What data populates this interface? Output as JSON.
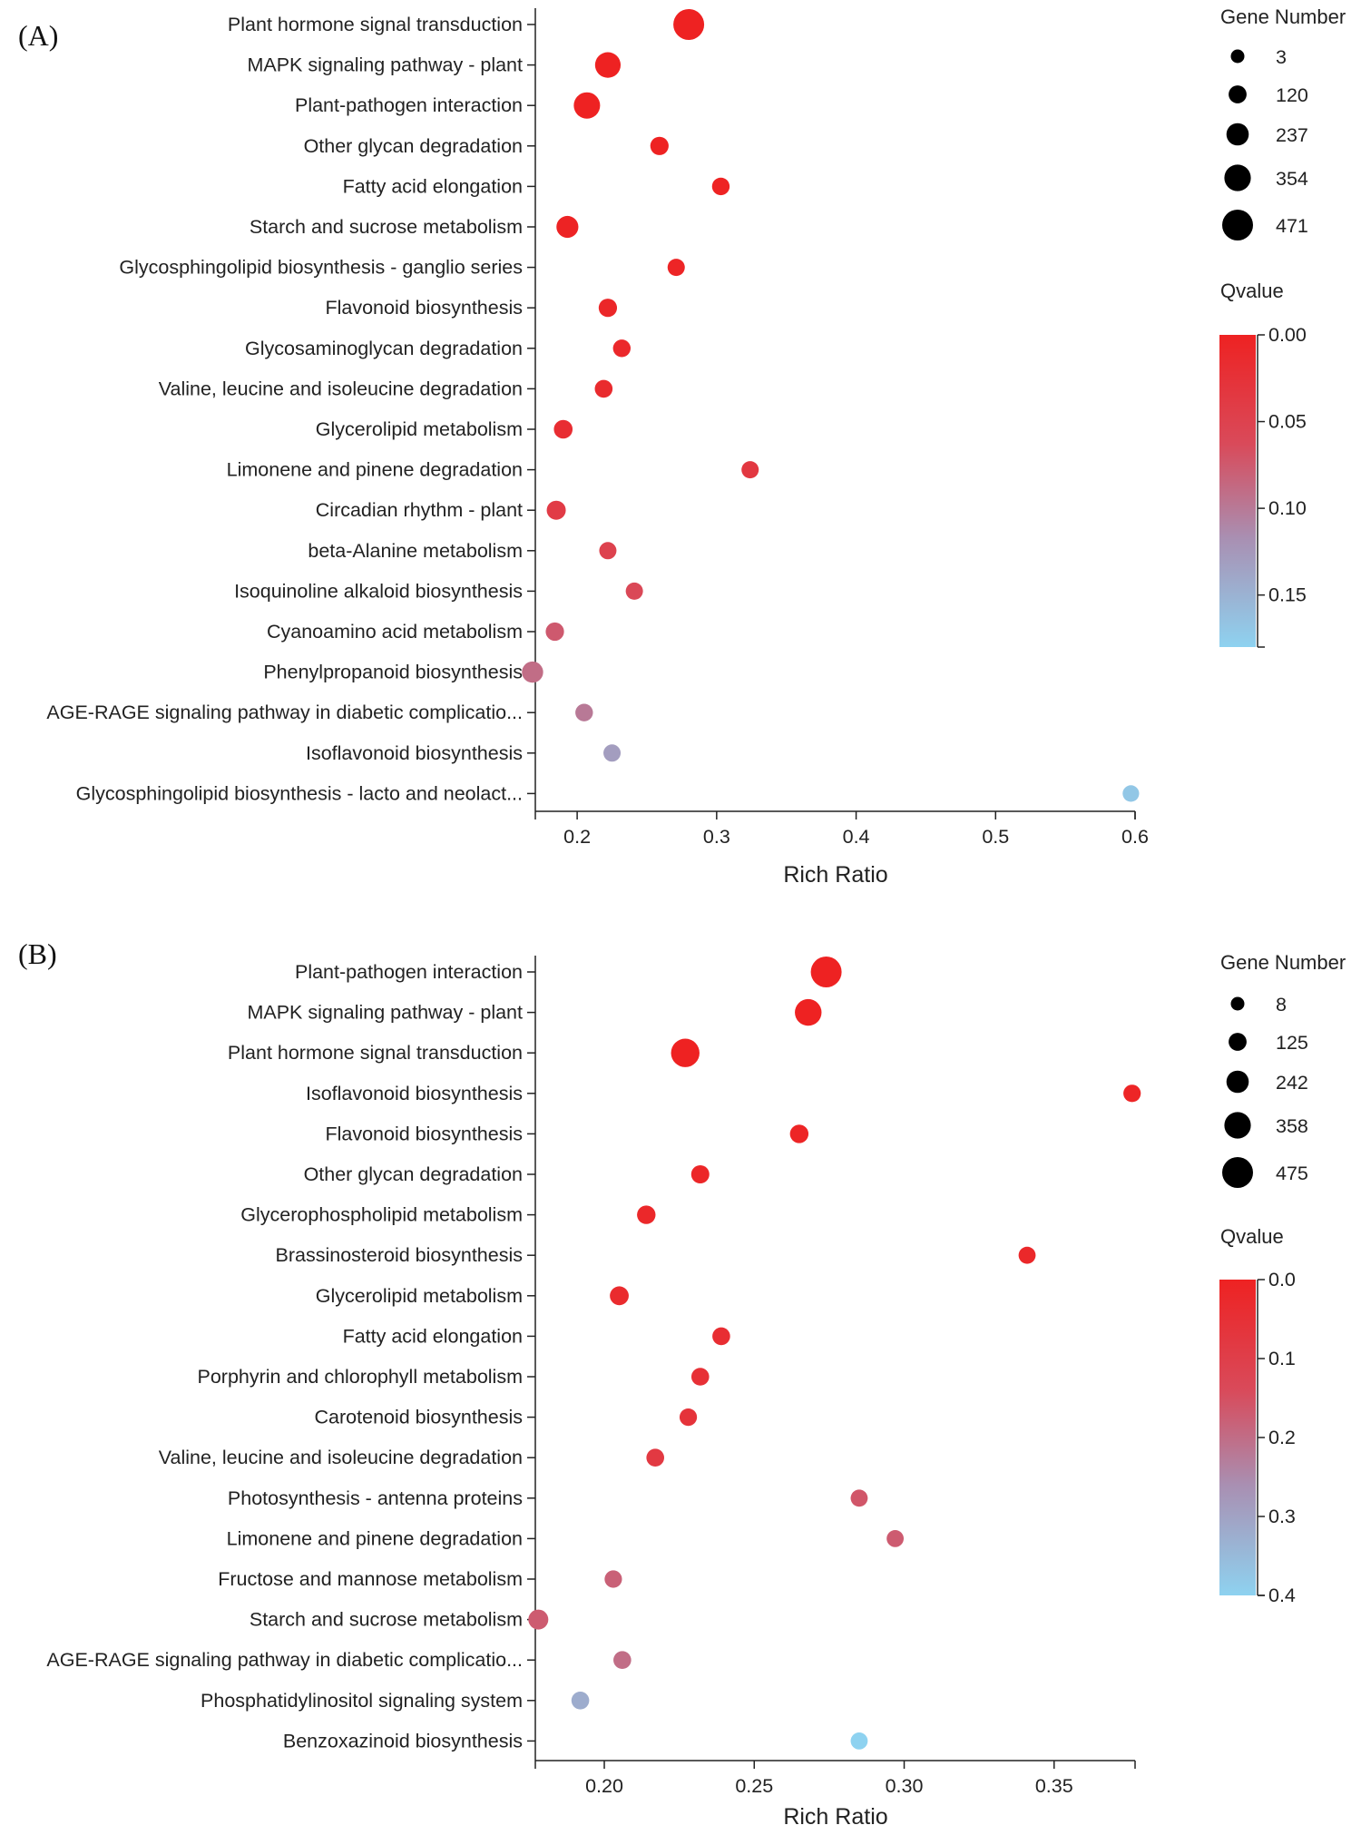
{
  "chart_data": [
    {
      "panel_label": "(A)",
      "type": "scatter",
      "xlabel": "Rich Ratio",
      "x_ticks": [
        "0.2",
        "0.3",
        "0.4",
        "0.5",
        "0.6"
      ],
      "x_tick_values": [
        0.2,
        0.3,
        0.4,
        0.5,
        0.6
      ],
      "xlim": [
        0.17,
        0.6
      ],
      "size_legend_title": "Gene Number",
      "size_legend_labels": [
        "3",
        "120",
        "237",
        "354",
        "471"
      ],
      "size_legend_values": [
        3,
        120,
        237,
        354,
        471
      ],
      "color_legend_title": "Qvalue",
      "color_ticks": [
        "0.00",
        "0.05",
        "0.10",
        "0.15"
      ],
      "color_tick_values": [
        0.0,
        0.05,
        0.1,
        0.15
      ],
      "color_range": [
        0.0,
        0.18
      ],
      "points": [
        {
          "term": "Plant hormone signal transduction",
          "rich_ratio": 0.28,
          "gene_number": 471,
          "qvalue": 0.0
        },
        {
          "term": "MAPK signaling pathway - plant",
          "rich_ratio": 0.222,
          "gene_number": 330,
          "qvalue": 0.0
        },
        {
          "term": "Plant-pathogen interaction",
          "rich_ratio": 0.207,
          "gene_number": 350,
          "qvalue": 0.0
        },
        {
          "term": "Other glycan degradation",
          "rich_ratio": 0.259,
          "gene_number": 130,
          "qvalue": 0.0
        },
        {
          "term": "Fatty acid elongation",
          "rich_ratio": 0.303,
          "gene_number": 110,
          "qvalue": 0.001
        },
        {
          "term": "Starch and sucrose metabolism",
          "rich_ratio": 0.193,
          "gene_number": 230,
          "qvalue": 0.002
        },
        {
          "term": "Glycosphingolipid biosynthesis - ganglio series",
          "rich_ratio": 0.271,
          "gene_number": 100,
          "qvalue": 0.004
        },
        {
          "term": "Flavonoid biosynthesis",
          "rich_ratio": 0.222,
          "gene_number": 130,
          "qvalue": 0.008
        },
        {
          "term": "Glycosaminoglycan degradation",
          "rich_ratio": 0.232,
          "gene_number": 110,
          "qvalue": 0.01
        },
        {
          "term": "Valine, leucine and isoleucine degradation",
          "rich_ratio": 0.219,
          "gene_number": 115,
          "qvalue": 0.014
        },
        {
          "term": "Glycerolipid metabolism",
          "rich_ratio": 0.19,
          "gene_number": 140,
          "qvalue": 0.018
        },
        {
          "term": "Limonene and pinene degradation",
          "rich_ratio": 0.324,
          "gene_number": 100,
          "qvalue": 0.035
        },
        {
          "term": "Circadian rhythm - plant",
          "rich_ratio": 0.185,
          "gene_number": 150,
          "qvalue": 0.04
        },
        {
          "term": "beta-Alanine metabolism",
          "rich_ratio": 0.222,
          "gene_number": 100,
          "qvalue": 0.05
        },
        {
          "term": "Isoquinoline alkaloid biosynthesis",
          "rich_ratio": 0.241,
          "gene_number": 100,
          "qvalue": 0.06
        },
        {
          "term": "Cyanoamino acid metabolism",
          "rich_ratio": 0.184,
          "gene_number": 130,
          "qvalue": 0.075
        },
        {
          "term": "Phenylpropanoid biosynthesis",
          "rich_ratio": 0.168,
          "gene_number": 210,
          "qvalue": 0.09
        },
        {
          "term": "AGE-RAGE signaling pathway in diabetic complicatio...",
          "rich_ratio": 0.205,
          "gene_number": 110,
          "qvalue": 0.1
        },
        {
          "term": "Isoflavonoid biosynthesis",
          "rich_ratio": 0.225,
          "gene_number": 100,
          "qvalue": 0.13
        },
        {
          "term": "Glycosphingolipid biosynthesis - lacto and neolact...",
          "rich_ratio": 0.597,
          "gene_number": 80,
          "qvalue": 0.17
        }
      ]
    },
    {
      "panel_label": "(B)",
      "type": "scatter",
      "xlabel": "Rich Ratio",
      "x_ticks": [
        "0.20",
        "0.25",
        "0.30",
        "0.35"
      ],
      "x_tick_values": [
        0.2,
        0.25,
        0.3,
        0.35
      ],
      "xlim": [
        0.177,
        0.377
      ],
      "size_legend_title": "Gene Number",
      "size_legend_labels": [
        "8",
        "125",
        "242",
        "358",
        "475"
      ],
      "size_legend_values": [
        8,
        125,
        242,
        358,
        475
      ],
      "color_legend_title": "Qvalue",
      "color_ticks": [
        "0.0",
        "0.1",
        "0.2",
        "0.3",
        "0.4"
      ],
      "color_tick_values": [
        0.0,
        0.1,
        0.2,
        0.3,
        0.4
      ],
      "color_range": [
        0.0,
        0.4
      ],
      "points": [
        {
          "term": "Plant-pathogen interaction",
          "rich_ratio": 0.274,
          "gene_number": 475,
          "qvalue": 0.0
        },
        {
          "term": "MAPK signaling pathway - plant",
          "rich_ratio": 0.268,
          "gene_number": 360,
          "qvalue": 0.0
        },
        {
          "term": "Plant hormone signal transduction",
          "rich_ratio": 0.227,
          "gene_number": 410,
          "qvalue": 0.0
        },
        {
          "term": "Isoflavonoid biosynthesis",
          "rich_ratio": 0.376,
          "gene_number": 110,
          "qvalue": 0.01
        },
        {
          "term": "Flavonoid biosynthesis",
          "rich_ratio": 0.265,
          "gene_number": 140,
          "qvalue": 0.01
        },
        {
          "term": "Other glycan degradation",
          "rich_ratio": 0.232,
          "gene_number": 130,
          "qvalue": 0.015
        },
        {
          "term": "Glycerophospholipid metabolism",
          "rich_ratio": 0.214,
          "gene_number": 140,
          "qvalue": 0.02
        },
        {
          "term": "Brassinosteroid biosynthesis",
          "rich_ratio": 0.341,
          "gene_number": 100,
          "qvalue": 0.02
        },
        {
          "term": "Glycerolipid metabolism",
          "rich_ratio": 0.205,
          "gene_number": 150,
          "qvalue": 0.03
        },
        {
          "term": "Fatty acid elongation",
          "rich_ratio": 0.239,
          "gene_number": 120,
          "qvalue": 0.04
        },
        {
          "term": "Porphyrin and chlorophyll metabolism",
          "rich_ratio": 0.232,
          "gene_number": 120,
          "qvalue": 0.05
        },
        {
          "term": "Carotenoid biosynthesis",
          "rich_ratio": 0.228,
          "gene_number": 110,
          "qvalue": 0.06
        },
        {
          "term": "Valine, leucine and isoleucine degradation",
          "rich_ratio": 0.217,
          "gene_number": 120,
          "qvalue": 0.08
        },
        {
          "term": "Photosynthesis - antenna proteins",
          "rich_ratio": 0.285,
          "gene_number": 100,
          "qvalue": 0.16
        },
        {
          "term": "Limonene and pinene degradation",
          "rich_ratio": 0.297,
          "gene_number": 100,
          "qvalue": 0.17
        },
        {
          "term": "Fructose and mannose metabolism",
          "rich_ratio": 0.203,
          "gene_number": 110,
          "qvalue": 0.18
        },
        {
          "term": "Starch and sucrose metabolism",
          "rich_ratio": 0.178,
          "gene_number": 180,
          "qvalue": 0.17
        },
        {
          "term": "AGE-RAGE signaling pathway in diabetic complicatio...",
          "rich_ratio": 0.206,
          "gene_number": 120,
          "qvalue": 0.2
        },
        {
          "term": "Phosphatidylinositol signaling system",
          "rich_ratio": 0.192,
          "gene_number": 120,
          "qvalue": 0.32
        },
        {
          "term": "Benzoxazinoid biosynthesis",
          "rich_ratio": 0.285,
          "gene_number": 100,
          "qvalue": 0.4
        }
      ]
    }
  ]
}
